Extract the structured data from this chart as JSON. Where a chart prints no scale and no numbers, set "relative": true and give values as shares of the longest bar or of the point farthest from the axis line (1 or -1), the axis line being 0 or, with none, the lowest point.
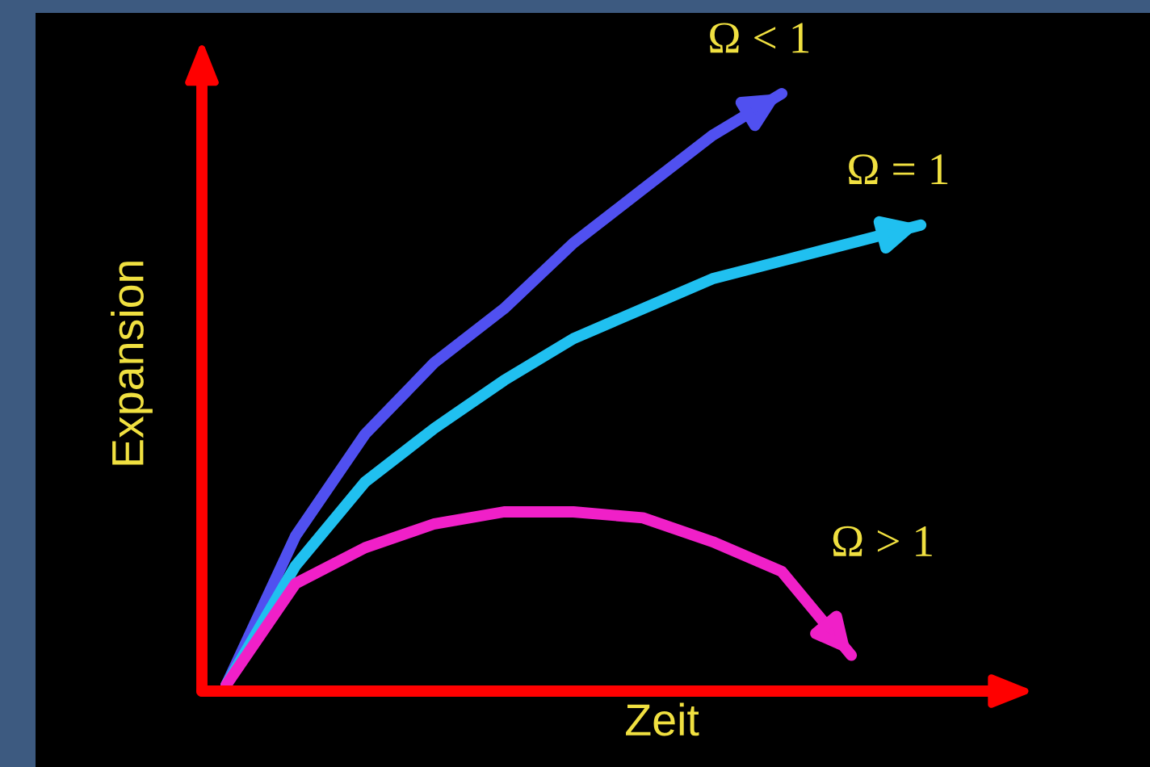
{
  "chart_data": {
    "type": "line",
    "relative": true,
    "xlabel": "Zeit",
    "ylabel": "Expansion",
    "marker": "none",
    "line_style": "solid",
    "categories": [
      null,
      null,
      null,
      null,
      null,
      null,
      null,
      null,
      null,
      null,
      null
    ],
    "series": [
      {
        "name": "Ω < 1",
        "color": "#5050f0",
        "values": [
          0.01,
          0.26,
          0.43,
          0.55,
          0.64,
          0.75,
          0.84,
          0.93,
          1.0,
          null,
          null
        ]
      },
      {
        "name": "Ω = 1",
        "color": "#20c0f0",
        "values": [
          0.01,
          0.21,
          0.35,
          0.44,
          0.52,
          0.59,
          0.64,
          0.69,
          0.72,
          0.75,
          0.78
        ]
      },
      {
        "name": "Ω > 1",
        "color": "#f020c8",
        "values": [
          0.01,
          0.18,
          0.24,
          0.28,
          0.3,
          0.3,
          0.29,
          0.25,
          0.2,
          0.06,
          null
        ]
      }
    ]
  }
}
